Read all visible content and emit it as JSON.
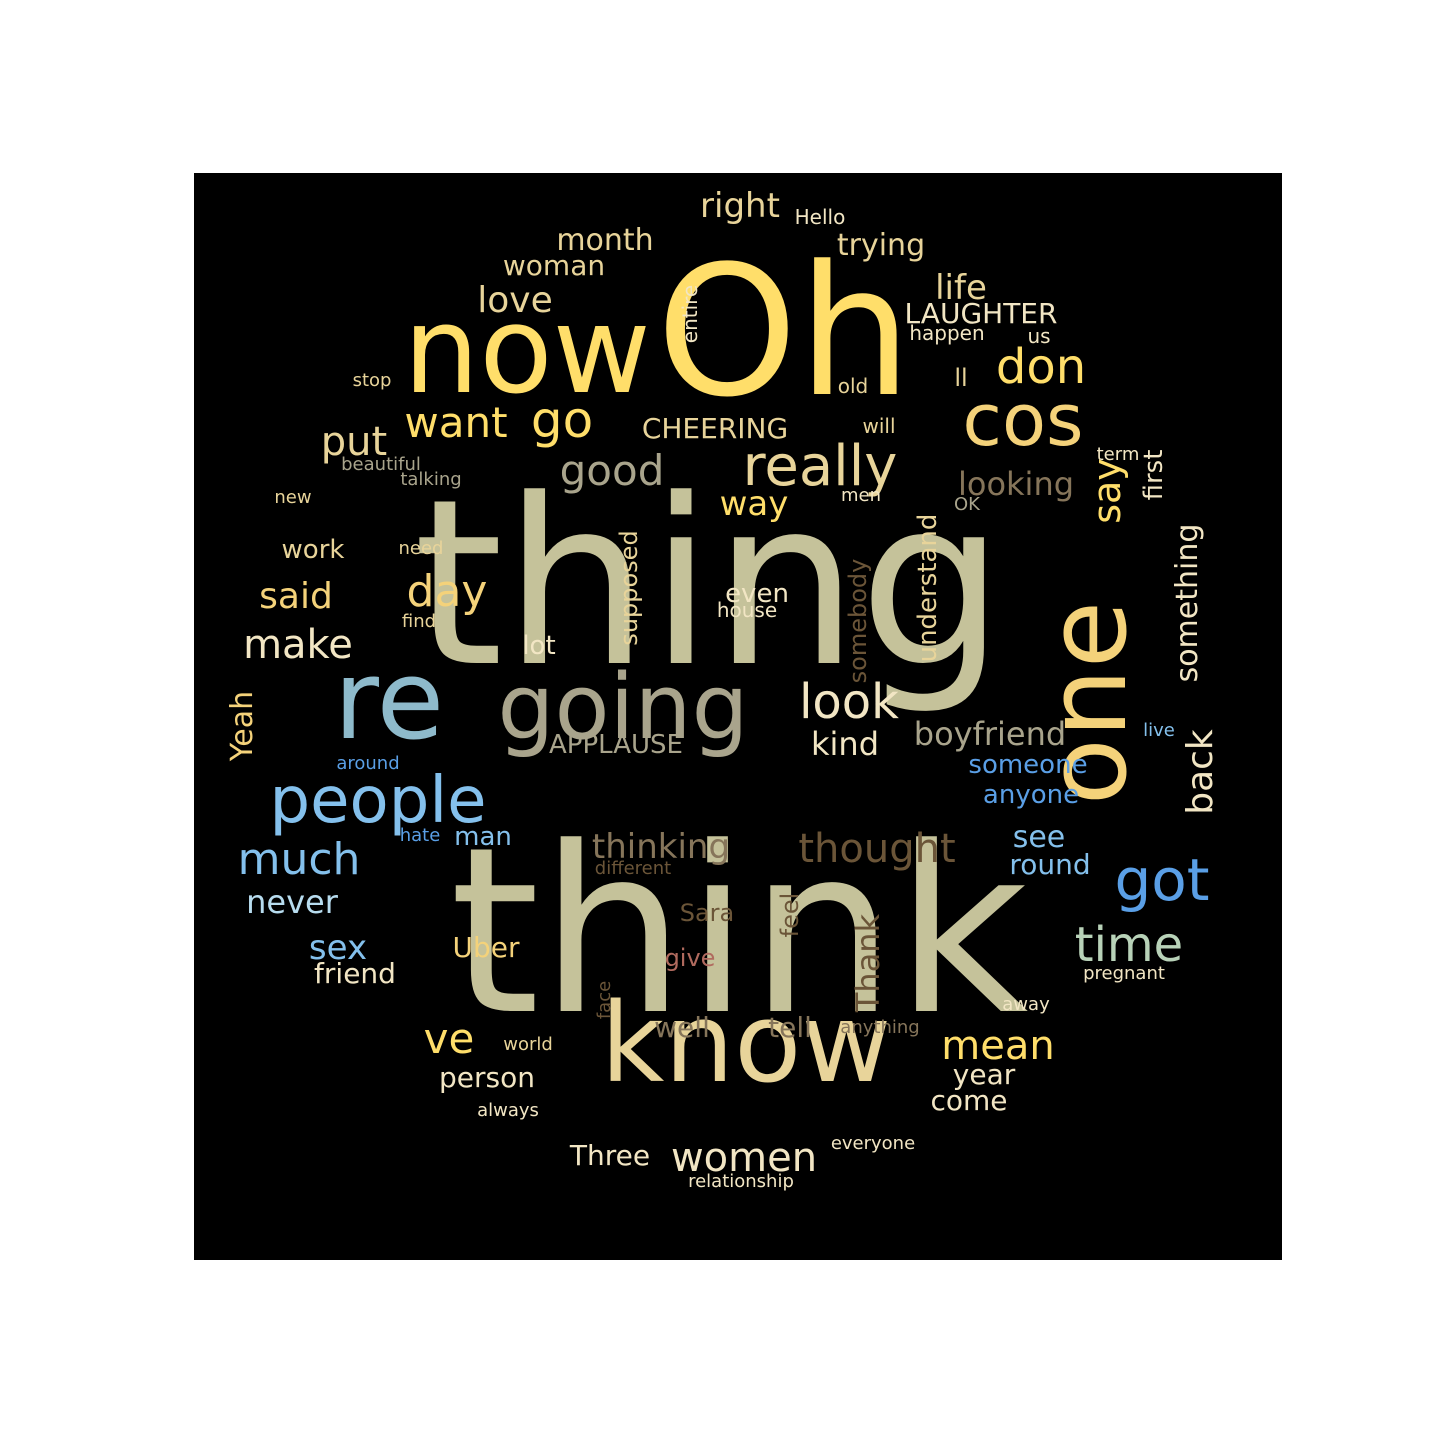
{
  "palette": {
    "background": "#000000",
    "yellow": "#FFDE6A",
    "gold": "#F4D27A",
    "khaki": "#C5C29A",
    "sand": "#E8D49A",
    "cream": "#F2E6C4",
    "grey_tan": "#A9A48C",
    "dark_tan": "#86755A",
    "brown": "#6B5538",
    "steel_blue": "#8EBACB",
    "sky_blue": "#6AAEEB",
    "light_blue": "#84C0EC",
    "mid_blue": "#5A9FE6",
    "pale_blue": "#B7DCEF",
    "sage": "#B8D2B8",
    "rose": "#B06A5E"
  },
  "words": [
    {
      "text": "thing",
      "color": "khaki"
    },
    {
      "text": "think",
      "color": "khaki"
    },
    {
      "text": "Oh",
      "color": "yellow"
    },
    {
      "text": "now",
      "color": "yellow"
    },
    {
      "text": "one",
      "color": "gold"
    },
    {
      "text": "know",
      "color": "sand"
    },
    {
      "text": "re",
      "color": "steel_blue"
    },
    {
      "text": "going",
      "color": "grey_tan"
    },
    {
      "text": "people",
      "color": "light_blue"
    },
    {
      "text": "cos",
      "color": "gold"
    },
    {
      "text": "really",
      "color": "sand"
    },
    {
      "text": "got",
      "color": "mid_blue"
    },
    {
      "text": "go",
      "color": "yellow"
    },
    {
      "text": "want",
      "color": "yellow"
    },
    {
      "text": "don",
      "color": "yellow"
    },
    {
      "text": "good",
      "color": "grey_tan"
    },
    {
      "text": "look",
      "color": "cream"
    },
    {
      "text": "time",
      "color": "sage"
    },
    {
      "text": "much",
      "color": "light_blue"
    },
    {
      "text": "thought",
      "color": "brown"
    },
    {
      "text": "day",
      "color": "gold"
    },
    {
      "text": "put",
      "color": "sand"
    },
    {
      "text": "make",
      "color": "cream"
    },
    {
      "text": "say",
      "color": "yellow"
    },
    {
      "text": "ve",
      "color": "yellow"
    },
    {
      "text": "mean",
      "color": "yellow"
    },
    {
      "text": "women",
      "color": "cream"
    },
    {
      "text": "back",
      "color": "cream"
    },
    {
      "text": "love",
      "color": "sand"
    },
    {
      "text": "said",
      "color": "gold"
    },
    {
      "text": "thinking",
      "color": "dark_tan"
    },
    {
      "text": "looking",
      "color": "dark_tan"
    },
    {
      "text": "way",
      "color": "yellow"
    },
    {
      "text": "boyfriend",
      "color": "grey_tan"
    },
    {
      "text": "kind",
      "color": "cream"
    },
    {
      "text": "sex",
      "color": "light_blue"
    },
    {
      "text": "life",
      "color": "sand"
    },
    {
      "text": "right",
      "color": "sand"
    },
    {
      "text": "month",
      "color": "sand"
    },
    {
      "text": "trying",
      "color": "sand"
    },
    {
      "text": "woman",
      "color": "sand"
    },
    {
      "text": "LAUGHTER",
      "color": "cream"
    },
    {
      "text": "CHEERING",
      "color": "sand"
    },
    {
      "text": "something",
      "color": "cream"
    },
    {
      "text": "Thank",
      "color": "brown"
    },
    {
      "text": "APPLAUSE",
      "color": "grey_tan"
    },
    {
      "text": "Yeah",
      "color": "gold"
    },
    {
      "text": "never",
      "color": "pale_blue"
    },
    {
      "text": "see",
      "color": "light_blue"
    },
    {
      "text": "round",
      "color": "light_blue"
    },
    {
      "text": "person",
      "color": "cream"
    },
    {
      "text": "year",
      "color": "cream"
    },
    {
      "text": "come",
      "color": "cream"
    },
    {
      "text": "Three",
      "color": "cream"
    },
    {
      "text": "well",
      "color": "dark_tan"
    },
    {
      "text": "tell",
      "color": "dark_tan"
    },
    {
      "text": "Uber",
      "color": "gold"
    },
    {
      "text": "friend",
      "color": "cream"
    },
    {
      "text": "work",
      "color": "sand"
    },
    {
      "text": "lot",
      "color": "cream"
    },
    {
      "text": "even",
      "color": "cream"
    },
    {
      "text": "first",
      "color": "cream"
    },
    {
      "text": "someone",
      "color": "mid_blue"
    },
    {
      "text": "anyone",
      "color": "mid_blue"
    },
    {
      "text": "man",
      "color": "light_blue"
    },
    {
      "text": "understand",
      "color": "sand"
    },
    {
      "text": "supposed",
      "color": "sand"
    },
    {
      "text": "somebody",
      "color": "brown"
    },
    {
      "text": "feel",
      "color": "brown"
    },
    {
      "text": "Sara",
      "color": "brown"
    },
    {
      "text": "give",
      "color": "rose"
    },
    {
      "text": "ll",
      "color": "sand"
    },
    {
      "text": "house",
      "color": "cream"
    },
    {
      "text": "Hello",
      "color": "cream"
    },
    {
      "text": "entire",
      "color": "cream"
    },
    {
      "text": "happen",
      "color": "cream"
    },
    {
      "text": "us",
      "color": "cream"
    },
    {
      "text": "stop",
      "color": "sand"
    },
    {
      "text": "old",
      "color": "sand"
    },
    {
      "text": "will",
      "color": "sand"
    },
    {
      "text": "beautiful",
      "color": "grey_tan"
    },
    {
      "text": "talking",
      "color": "grey_tan"
    },
    {
      "text": "term",
      "color": "cream"
    },
    {
      "text": "men",
      "color": "cream"
    },
    {
      "text": "OK",
      "color": "grey_tan"
    },
    {
      "text": "new",
      "color": "sand"
    },
    {
      "text": "need",
      "color": "sand"
    },
    {
      "text": "find",
      "color": "sand"
    },
    {
      "text": "live",
      "color": "light_blue"
    },
    {
      "text": "around",
      "color": "mid_blue"
    },
    {
      "text": "hate",
      "color": "mid_blue"
    },
    {
      "text": "different",
      "color": "brown"
    },
    {
      "text": "pregnant",
      "color": "cream"
    },
    {
      "text": "away",
      "color": "cream"
    },
    {
      "text": "face",
      "color": "brown"
    },
    {
      "text": "anything",
      "color": "dark_tan"
    },
    {
      "text": "world",
      "color": "sand"
    },
    {
      "text": "always",
      "color": "cream"
    },
    {
      "text": "everyone",
      "color": "cream"
    },
    {
      "text": "relationship",
      "color": "cream"
    }
  ]
}
